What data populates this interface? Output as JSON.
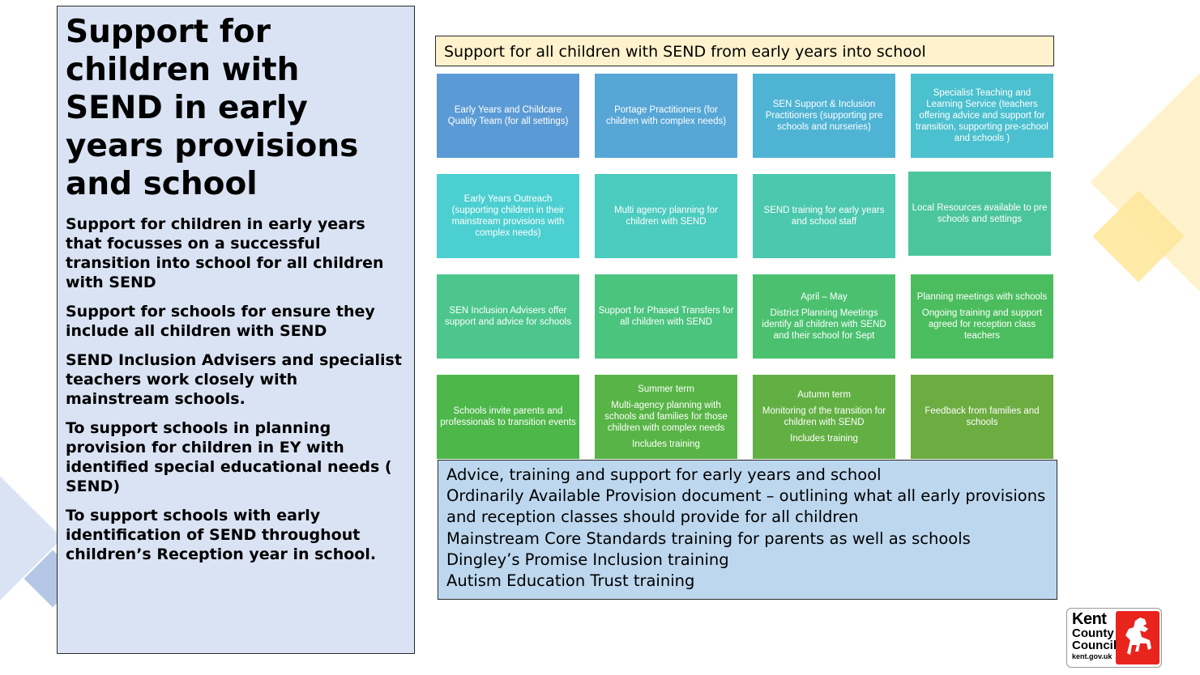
{
  "left_panel": {
    "title": "Support for children with SEND in early years provisions and school",
    "paragraphs": [
      "Support for children in early years that focusses on a successful transition into school for all children with SEND",
      "Support for schools for ensure they include all children with SEND",
      "SEND Inclusion Advisers and specialist teachers work closely with mainstream schools.",
      "To support schools in planning provision for children in EY with identified special educational needs ( SEND)",
      "To support schools with early identification of SEND throughout children’s Reception year in school."
    ]
  },
  "banner": {
    "text": "Support for all children with SEND from early years into school"
  },
  "tiles": {
    "r1c1": {
      "text": "Early Years and Childcare Quality Team (for all settings)",
      "color": "#5b9bd5"
    },
    "r1c2": {
      "text": "Portage  Practitioners (for children with complex needs)",
      "color": "#56a6d6"
    },
    "r1c3": {
      "text": "SEN Support & Inclusion Practitioners (supporting  pre schools and nurseries)",
      "color": "#4fb3d4"
    },
    "r1c4": {
      "text": "Specialist Teaching and Learning Service (teachers offering advice and support for transition, supporting pre-school and schools )",
      "color": "#4bc0cf"
    },
    "r2c1": {
      "text": "Early Years Outreach (supporting children in their mainstream provisions with complex needs)",
      "color": "#4ccfd0"
    },
    "r2c2": {
      "text": "Multi agency planning for children with  SEND",
      "color": "#4ccbbf"
    },
    "r2c3": {
      "text": "SEND training for early  years and school staff",
      "color": "#4bc8ae"
    },
    "r2c4": {
      "text": "Local Resources available to pre schools and settings",
      "color": "#4bc59c"
    },
    "r3c1": {
      "text": "SEN Inclusion Advisers offer support and advice for schools",
      "color": "#4cc68c"
    },
    "r3c2": {
      "text": "Support for Phased Transfers for all children with SEND",
      "color": "#4bc47e"
    },
    "r3c3": {
      "heading": "April – May",
      "text": "District Planning Meetings identify all children with SEND and their school  for Sept",
      "color": "#4bc170"
    },
    "r3c4": {
      "heading": "Planning meetings with schools",
      "text": "Ongoing training and support agreed  for reception  class teachers",
      "color": "#4bbd5e"
    },
    "r4c1": {
      "text": "Schools invite parents and professionals to transition events",
      "color": "#4db74a"
    },
    "r4c2": {
      "heading": "Summer term",
      "text": "Multi-agency  planning with schools and families  for those children with complex needs",
      "tail": "Includes training",
      "color": "#58b446"
    },
    "r4c3": {
      "heading": "Autumn term",
      "text": "Monitoring of the transition for children with SEND",
      "tail": "Includes training",
      "color": "#62b043"
    },
    "r4c4": {
      "text": "Feedback from families  and schools",
      "color": "#6cac40"
    }
  },
  "bottom_box": {
    "lines": [
      "Advice, training and support for early years and school",
      "Ordinarily Available Provision document – outlining what all early provisions and reception classes should provide for all children",
      "Mainstream Core Standards training for parents as well as schools",
      "Dingley’s Promise Inclusion training",
      "Autism Education Trust training"
    ]
  },
  "logo": {
    "line1": "Kent",
    "line2": "County",
    "line3": "Council",
    "url_text": "kent.gov.uk",
    "color": "#e8241d"
  },
  "decor_colors": {
    "yellow": "#ffd966",
    "blue": "#8faadc"
  }
}
